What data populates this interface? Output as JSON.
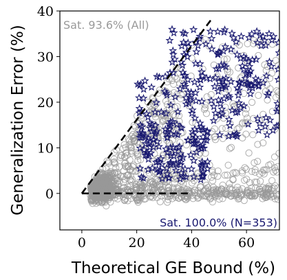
{
  "chart_data": {
    "type": "scatter",
    "xlabel": "Theoretical GE Bound (%)",
    "ylabel": "Generalization Error (%)",
    "xlim": [
      -8,
      72
    ],
    "ylim": [
      -8,
      40
    ],
    "x_ticks": [
      "0",
      "20",
      "40",
      "60"
    ],
    "y_ticks": [
      "0",
      "10",
      "20",
      "30",
      "40"
    ],
    "grid": false,
    "annotations": {
      "all_label": "Sat. 93.6% (All)",
      "subset_label": "Sat. 100.0% (N=353)"
    },
    "reference_lines": [
      {
        "name": "upper-bound-line",
        "x": [
          0,
          47
        ],
        "y": [
          0,
          38
        ],
        "style": "dashed"
      },
      {
        "name": "zero-line",
        "x": [
          0,
          40
        ],
        "y": [
          0,
          0
        ],
        "style": "dashed"
      }
    ],
    "series": [
      {
        "marker": "circle-open",
        "color": "#999999",
        "n_points": 1600
      },
      {
        "marker": "star-open",
        "color": "#191970",
        "n_points": 353
      }
    ]
  }
}
